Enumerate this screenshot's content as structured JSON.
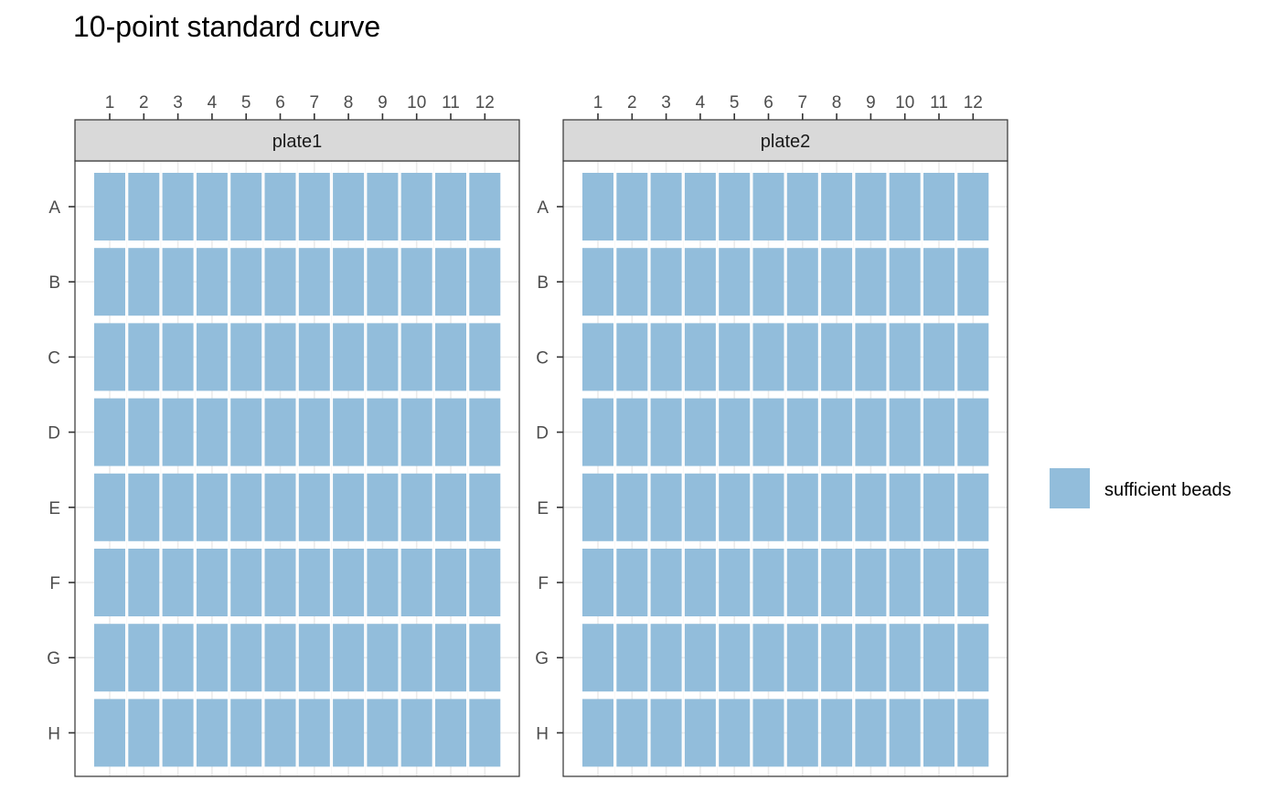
{
  "chart_data": {
    "type": "heatmap",
    "title": "10-point standard curve",
    "xlabel": "",
    "ylabel": "",
    "x_categories": [
      "1",
      "2",
      "3",
      "4",
      "5",
      "6",
      "7",
      "8",
      "9",
      "10",
      "11",
      "12"
    ],
    "y_categories": [
      "A",
      "B",
      "C",
      "D",
      "E",
      "F",
      "G",
      "H"
    ],
    "x_axis_position": "top",
    "grid": true,
    "legend_position": "right",
    "legend": [
      {
        "label": "sufficient beads",
        "color": "#92BDDB"
      }
    ],
    "panels": [
      {
        "name": "plate1",
        "status": [
          [
            "sufficient beads",
            "sufficient beads",
            "sufficient beads",
            "sufficient beads",
            "sufficient beads",
            "sufficient beads",
            "sufficient beads",
            "sufficient beads",
            "sufficient beads",
            "sufficient beads",
            "sufficient beads",
            "sufficient beads"
          ],
          [
            "sufficient beads",
            "sufficient beads",
            "sufficient beads",
            "sufficient beads",
            "sufficient beads",
            "sufficient beads",
            "sufficient beads",
            "sufficient beads",
            "sufficient beads",
            "sufficient beads",
            "sufficient beads",
            "sufficient beads"
          ],
          [
            "sufficient beads",
            "sufficient beads",
            "sufficient beads",
            "sufficient beads",
            "sufficient beads",
            "sufficient beads",
            "sufficient beads",
            "sufficient beads",
            "sufficient beads",
            "sufficient beads",
            "sufficient beads",
            "sufficient beads"
          ],
          [
            "sufficient beads",
            "sufficient beads",
            "sufficient beads",
            "sufficient beads",
            "sufficient beads",
            "sufficient beads",
            "sufficient beads",
            "sufficient beads",
            "sufficient beads",
            "sufficient beads",
            "sufficient beads",
            "sufficient beads"
          ],
          [
            "sufficient beads",
            "sufficient beads",
            "sufficient beads",
            "sufficient beads",
            "sufficient beads",
            "sufficient beads",
            "sufficient beads",
            "sufficient beads",
            "sufficient beads",
            "sufficient beads",
            "sufficient beads",
            "sufficient beads"
          ],
          [
            "sufficient beads",
            "sufficient beads",
            "sufficient beads",
            "sufficient beads",
            "sufficient beads",
            "sufficient beads",
            "sufficient beads",
            "sufficient beads",
            "sufficient beads",
            "sufficient beads",
            "sufficient beads",
            "sufficient beads"
          ],
          [
            "sufficient beads",
            "sufficient beads",
            "sufficient beads",
            "sufficient beads",
            "sufficient beads",
            "sufficient beads",
            "sufficient beads",
            "sufficient beads",
            "sufficient beads",
            "sufficient beads",
            "sufficient beads",
            "sufficient beads"
          ],
          [
            "sufficient beads",
            "sufficient beads",
            "sufficient beads",
            "sufficient beads",
            "sufficient beads",
            "sufficient beads",
            "sufficient beads",
            "sufficient beads",
            "sufficient beads",
            "sufficient beads",
            "sufficient beads",
            "sufficient beads"
          ]
        ]
      },
      {
        "name": "plate2",
        "status": [
          [
            "sufficient beads",
            "sufficient beads",
            "sufficient beads",
            "sufficient beads",
            "sufficient beads",
            "sufficient beads",
            "sufficient beads",
            "sufficient beads",
            "sufficient beads",
            "sufficient beads",
            "sufficient beads",
            "sufficient beads"
          ],
          [
            "sufficient beads",
            "sufficient beads",
            "sufficient beads",
            "sufficient beads",
            "sufficient beads",
            "sufficient beads",
            "sufficient beads",
            "sufficient beads",
            "sufficient beads",
            "sufficient beads",
            "sufficient beads",
            "sufficient beads"
          ],
          [
            "sufficient beads",
            "sufficient beads",
            "sufficient beads",
            "sufficient beads",
            "sufficient beads",
            "sufficient beads",
            "sufficient beads",
            "sufficient beads",
            "sufficient beads",
            "sufficient beads",
            "sufficient beads",
            "sufficient beads"
          ],
          [
            "sufficient beads",
            "sufficient beads",
            "sufficient beads",
            "sufficient beads",
            "sufficient beads",
            "sufficient beads",
            "sufficient beads",
            "sufficient beads",
            "sufficient beads",
            "sufficient beads",
            "sufficient beads",
            "sufficient beads"
          ],
          [
            "sufficient beads",
            "sufficient beads",
            "sufficient beads",
            "sufficient beads",
            "sufficient beads",
            "sufficient beads",
            "sufficient beads",
            "sufficient beads",
            "sufficient beads",
            "sufficient beads",
            "sufficient beads",
            "sufficient beads"
          ],
          [
            "sufficient beads",
            "sufficient beads",
            "sufficient beads",
            "sufficient beads",
            "sufficient beads",
            "sufficient beads",
            "sufficient beads",
            "sufficient beads",
            "sufficient beads",
            "sufficient beads",
            "sufficient beads",
            "sufficient beads"
          ],
          [
            "sufficient beads",
            "sufficient beads",
            "sufficient beads",
            "sufficient beads",
            "sufficient beads",
            "sufficient beads",
            "sufficient beads",
            "sufficient beads",
            "sufficient beads",
            "sufficient beads",
            "sufficient beads",
            "sufficient beads"
          ],
          [
            "sufficient beads",
            "sufficient beads",
            "sufficient beads",
            "sufficient beads",
            "sufficient beads",
            "sufficient beads",
            "sufficient beads",
            "sufficient beads",
            "sufficient beads",
            "sufficient beads",
            "sufficient beads",
            "sufficient beads"
          ]
        ]
      }
    ]
  }
}
